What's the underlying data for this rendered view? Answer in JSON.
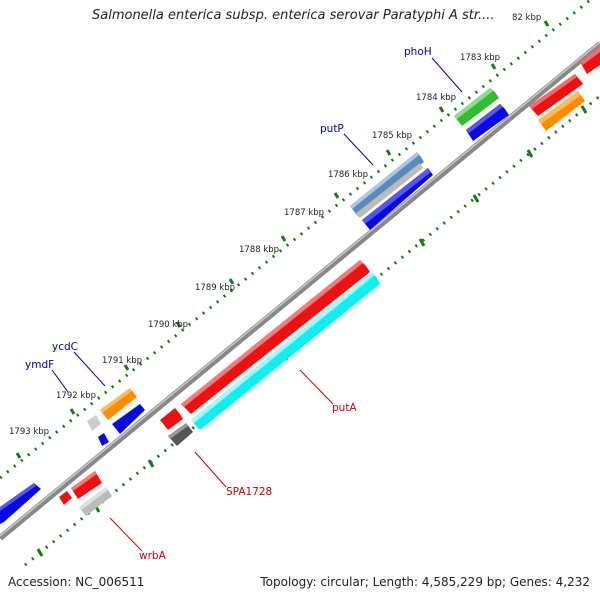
{
  "title": "Salmonella enterica subsp. enterica serovar Paratyphi A str....",
  "accession": "Accession: NC_006511",
  "summary": "Topology: circular; Length: 4,585,229 bp; Genes: 4,232",
  "ticks": [
    "82 kbp",
    "1783 kbp",
    "1784 kbp",
    "1785 kbp",
    "1786 kbp",
    "1787 kbp",
    "1788 kbp",
    "1789 kbp",
    "1790 kbp",
    "1791 kbp",
    "1792 kbp",
    "1793 kbp"
  ],
  "genes": {
    "phoH": "phoH",
    "putP": "putP",
    "ycdC": "ycdC",
    "ymdF": "ymdF",
    "putA": "putA",
    "SPA1728": "SPA1728",
    "wrbA": "wrbA"
  },
  "colors": {
    "backbone": "#777777",
    "tick_ring": "#1a7a1a",
    "forward_label": "#0000bb",
    "reverse_label": "#cc0000",
    "red": "#ee1111",
    "blue": "#0a0ae0",
    "cyan": "#11eeee",
    "orange": "#ff8c00",
    "green": "#33bb33",
    "steelblue": "#5a8ab8",
    "grey": "#bbbbbb",
    "darkgrey": "#555555"
  }
}
